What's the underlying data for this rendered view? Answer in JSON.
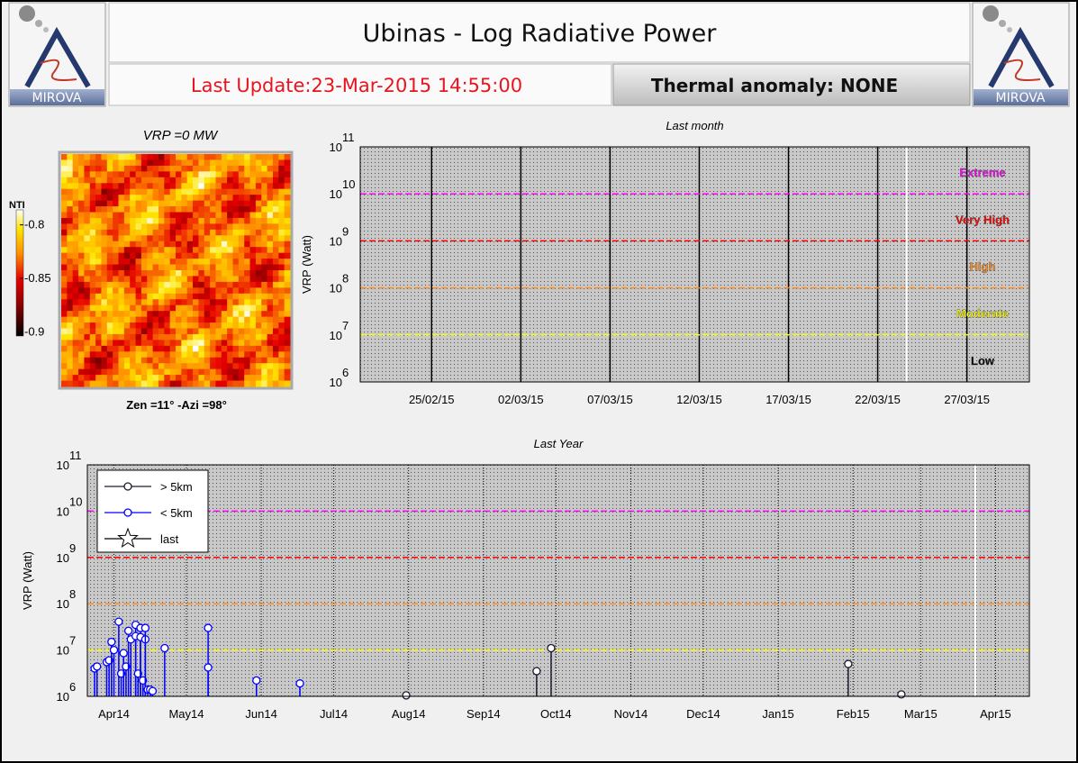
{
  "header": {
    "title": "Ubinas - Log Radiative Power",
    "last_update": "Last Update:23-Mar-2015 14:55:00",
    "thermal_anomaly": "Thermal anomaly: NONE",
    "logo_text": "MIROVA"
  },
  "image_panel": {
    "title": "VRP =0 MW",
    "caption": "Zen =11° -Azi =98°",
    "colorbar": {
      "label": "NTI",
      "lim": [
        -0.904,
        -0.786
      ],
      "ticks": [
        -0.8,
        -0.85,
        -0.9
      ]
    }
  },
  "chart_data": [
    {
      "type": "scatter",
      "title": "Last month",
      "y_label": "VRP (Watt)",
      "log_y": true,
      "ylim": [
        1000000,
        100000000000
      ],
      "yticks": [
        {
          "value": 1000000,
          "label": "10",
          "exponent": "6"
        },
        {
          "value": 10000000,
          "label": "10",
          "exponent": "7"
        },
        {
          "value": 100000000,
          "label": "10",
          "exponent": "8"
        },
        {
          "value": 1000000000,
          "label": "10",
          "exponent": "9"
        },
        {
          "value": 10000000000,
          "label": "10",
          "exponent": "10"
        },
        {
          "value": 100000000000,
          "label": "10",
          "exponent": "11"
        }
      ],
      "xlim": [
        "2015-02-21",
        "2015-03-30T12:00:00Z"
      ],
      "xticks": [
        {
          "value": "2015-02-25",
          "label": "25/02/15"
        },
        {
          "value": "2015-03-02",
          "label": "02/03/15"
        },
        {
          "value": "2015-03-07",
          "label": "07/03/15"
        },
        {
          "value": "2015-03-12",
          "label": "12/03/15"
        },
        {
          "value": "2015-03-17",
          "label": "17/03/15"
        },
        {
          "value": "2015-03-22",
          "label": "22/03/15"
        },
        {
          "value": "2015-03-27",
          "label": "27/03/15"
        }
      ],
      "x_grid": "solid",
      "current_time": "2015-03-23T14:55:00Z",
      "levels": [
        {
          "name": "Low",
          "min": 1000000,
          "color": "#000000"
        },
        {
          "name": "Moderate",
          "min": 10000000,
          "color": "#ffff00"
        },
        {
          "name": "High",
          "min": 100000000,
          "color": "#ff8c1a"
        },
        {
          "name": "Very High",
          "min": 1000000000,
          "color": "#ff0000"
        },
        {
          "name": "Extreme",
          "min": 10000000000,
          "color": "#ff00ff"
        }
      ],
      "series": []
    },
    {
      "type": "scatter",
      "title": "Last Year",
      "y_label": "VRP (Watt)",
      "log_y": true,
      "stems": true,
      "ylim": [
        1000000,
        100000000000
      ],
      "yticks": [
        {
          "value": 1000000,
          "label": "10",
          "exponent": "6"
        },
        {
          "value": 10000000,
          "label": "10",
          "exponent": "7"
        },
        {
          "value": 100000000,
          "label": "10",
          "exponent": "8"
        },
        {
          "value": 1000000000,
          "label": "10",
          "exponent": "9"
        },
        {
          "value": 10000000000,
          "label": "10",
          "exponent": "10"
        },
        {
          "value": 100000000000,
          "label": "10",
          "exponent": "11"
        }
      ],
      "xlim": [
        "2014-03-21",
        "2015-04-15"
      ],
      "xticks": [
        {
          "value": "2014-04-01",
          "label": "Apr14"
        },
        {
          "value": "2014-05-01",
          "label": "May14"
        },
        {
          "value": "2014-06-01",
          "label": "Jun14"
        },
        {
          "value": "2014-07-01",
          "label": "Jul14"
        },
        {
          "value": "2014-08-01",
          "label": "Aug14"
        },
        {
          "value": "2014-09-01",
          "label": "Sep14"
        },
        {
          "value": "2014-10-01",
          "label": "Oct14"
        },
        {
          "value": "2014-11-01",
          "label": "Nov14"
        },
        {
          "value": "2014-12-01",
          "label": "Dec14"
        },
        {
          "value": "2015-01-01",
          "label": "Jan15"
        },
        {
          "value": "2015-02-01",
          "label": "Feb15"
        },
        {
          "value": "2015-03-01",
          "label": "Mar15"
        },
        {
          "value": "2015-04-01",
          "label": "Apr15"
        }
      ],
      "x_grid": "dotted",
      "current_time": "2015-03-23T14:55:00Z",
      "legend": "upper left",
      "series": [
        {
          "name": "> 5km",
          "color": "#1a1a33",
          "marker": "circle",
          "x": [
            "2014-07-31",
            "2014-09-23",
            "2014-09-29",
            "2015-01-30",
            "2015-02-21"
          ],
          "values": [
            1050000,
            3500000,
            11000000,
            5000000,
            1100000
          ]
        },
        {
          "name": "< 5km",
          "color": "#0000ff",
          "marker": "circle",
          "x": [
            "2014-03-24",
            "2014-03-25",
            "2014-03-29",
            "2014-03-30",
            "2014-03-31",
            "2014-04-01",
            "2014-04-03",
            "2014-04-04",
            "2014-04-05",
            "2014-04-06",
            "2014-04-07",
            "2014-04-08",
            "2014-04-10",
            "2014-04-10",
            "2014-04-11",
            "2014-04-12",
            "2014-04-12",
            "2014-04-13",
            "2014-04-14",
            "2014-04-14",
            "2014-04-15",
            "2014-04-16",
            "2014-04-17",
            "2014-04-22",
            "2014-05-10",
            "2014-05-10",
            "2014-05-30",
            "2014-06-17"
          ],
          "values": [
            4000000,
            4400000,
            5500000,
            6000000,
            15000000,
            10000000,
            41000000,
            3100000,
            8600000,
            4400000,
            26000000,
            17000000,
            35000000,
            20000000,
            3100000,
            30000000,
            19000000,
            2200000,
            17000000,
            30000000,
            1400000,
            1400000,
            1300000,
            11000000,
            30000000,
            4200000,
            2200000,
            1900000
          ]
        },
        {
          "name": "last",
          "color": "#000000",
          "marker": "star",
          "x": [],
          "values": []
        }
      ]
    }
  ]
}
